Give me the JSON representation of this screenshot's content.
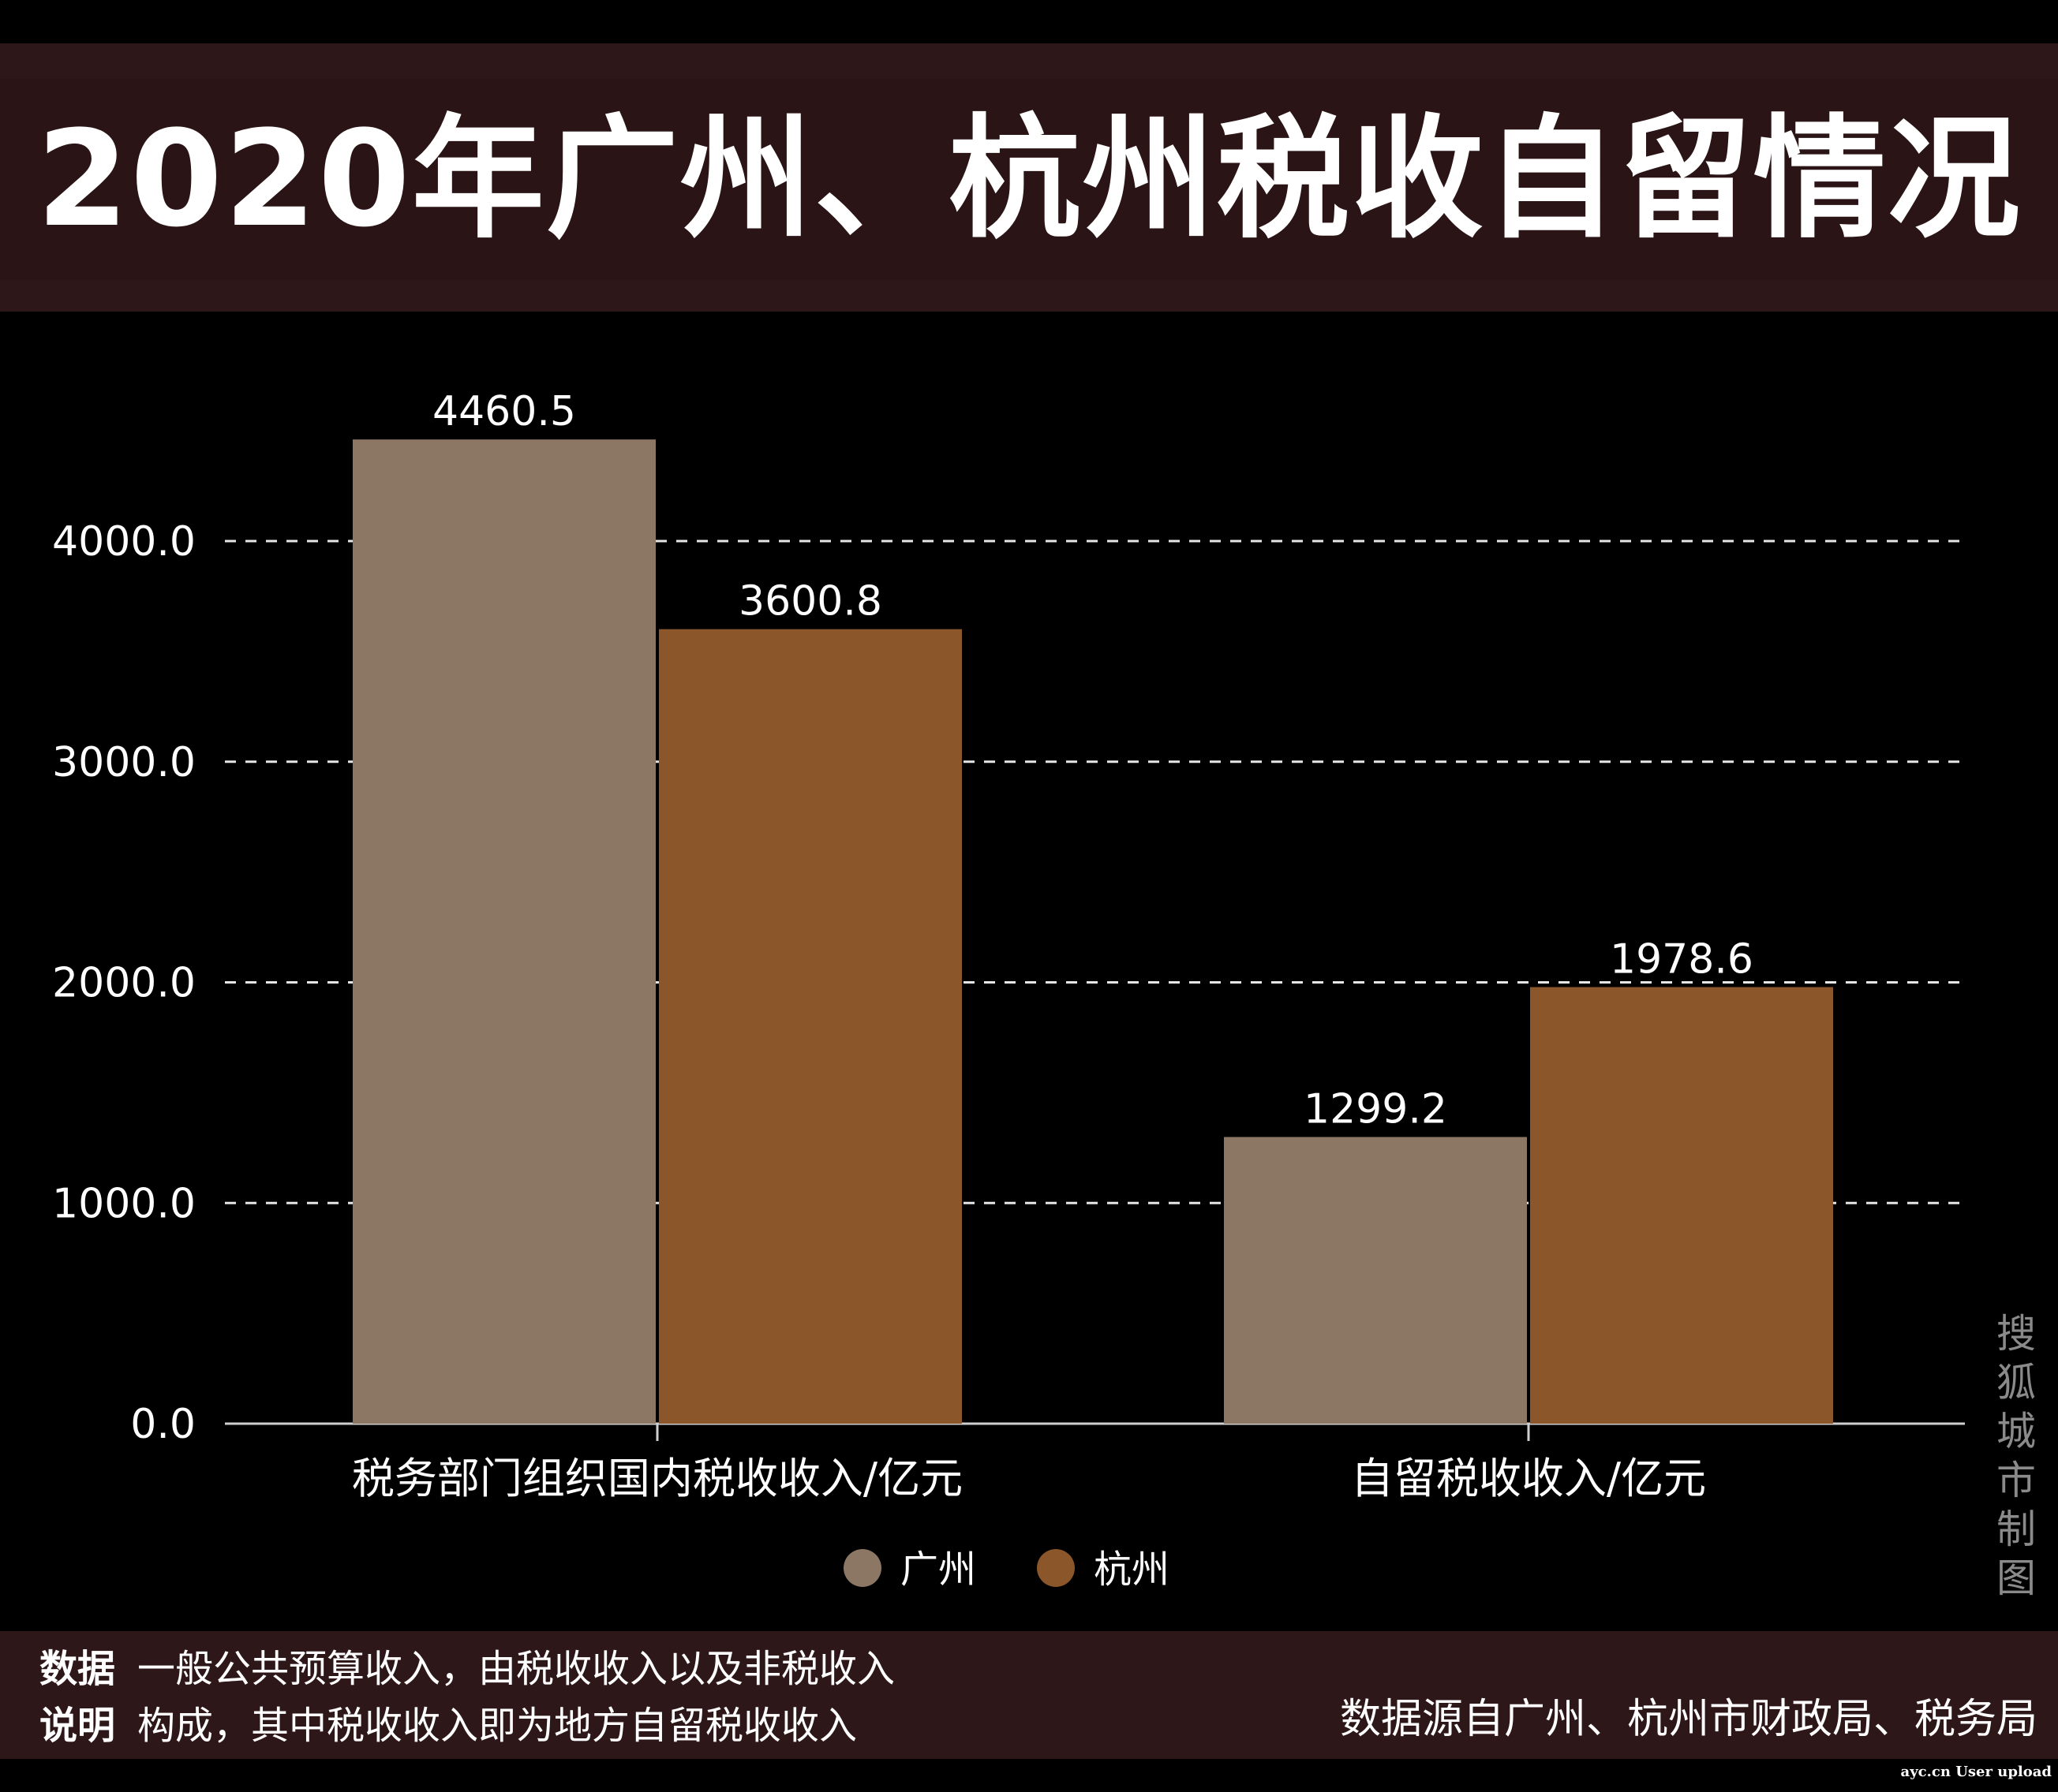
{
  "title": "2020年广州、杭州税收自留情况",
  "chart_data": {
    "type": "bar",
    "title": "2020年广州、杭州税收自留情况",
    "categories": [
      "税务部门组织国内税收收入/亿元",
      "自留税收收入/亿元"
    ],
    "series": [
      {
        "name": "广州",
        "values": [
          4460.5,
          1299.2
        ],
        "color": "#8c7764"
      },
      {
        "name": "杭州",
        "values": [
          3600.8,
          1978.6
        ],
        "color": "#8b572a"
      }
    ],
    "value_labels": [
      [
        "4460.5",
        "1299.2"
      ],
      [
        "3600.8",
        "1978.6"
      ]
    ],
    "yticks": [
      "0.0",
      "1000.0",
      "2000.0",
      "3000.0",
      "4000.0"
    ],
    "ylim": [
      0,
      4750
    ],
    "grid": true,
    "legend_position": "bottom-center",
    "xlabel": "",
    "ylabel": ""
  },
  "watermark": [
    "搜",
    "狐",
    "城",
    "市",
    "制",
    "图"
  ],
  "footer": {
    "label_1": "数据",
    "label_2": "说明",
    "line_1": "一般公共预算收入，由税收收入以及非税收入",
    "line_2": "构成，其中税收收入即为地方自留税收收入",
    "source": "数据源自广州、杭州市财政局、税务局"
  },
  "credit": "ayc.cn User upload"
}
